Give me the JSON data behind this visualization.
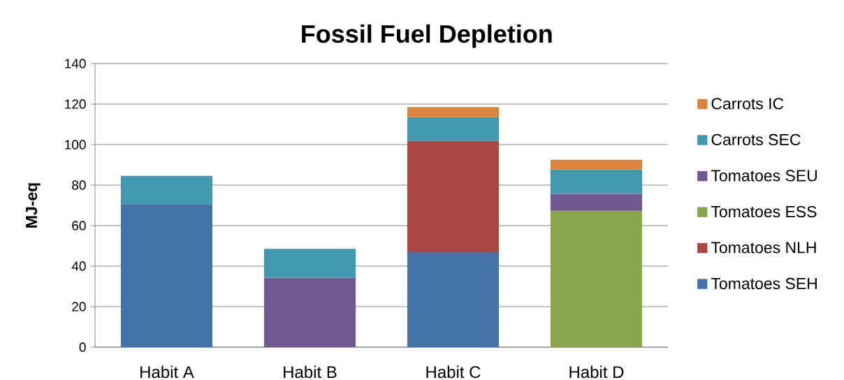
{
  "chart_data": {
    "type": "bar",
    "title": "Fossil Fuel Depletion",
    "ylabel": "MJ-eq",
    "categories": [
      "Habit A",
      "Habit B",
      "Habit C",
      "Habit D"
    ],
    "stacked": true,
    "series": [
      {
        "name": "Tomatoes SEH",
        "color": "#4572a7",
        "values": [
          70.6,
          null,
          46.9,
          null
        ]
      },
      {
        "name": "Tomatoes NLH",
        "color": "#aa4643",
        "values": [
          null,
          null,
          54.9,
          null
        ]
      },
      {
        "name": "Tomatoes ESS",
        "color": "#89a54e",
        "values": [
          null,
          null,
          null,
          67.3
        ]
      },
      {
        "name": "Tomatoes SEU",
        "color": "#71588f",
        "values": [
          null,
          34.2,
          null,
          8.4
        ]
      },
      {
        "name": "Carrots SEC",
        "color": "#4198af",
        "values": [
          14.0,
          14.3,
          11.7,
          12.0
        ]
      },
      {
        "name": "Carrots IC",
        "color": "#db843d",
        "values": [
          null,
          null,
          5.0,
          4.8
        ]
      }
    ],
    "ylim": [
      0,
      140
    ],
    "yticks": [
      0,
      20,
      40,
      60,
      80,
      100,
      120,
      140
    ],
    "grid": "y",
    "legend": "right"
  }
}
